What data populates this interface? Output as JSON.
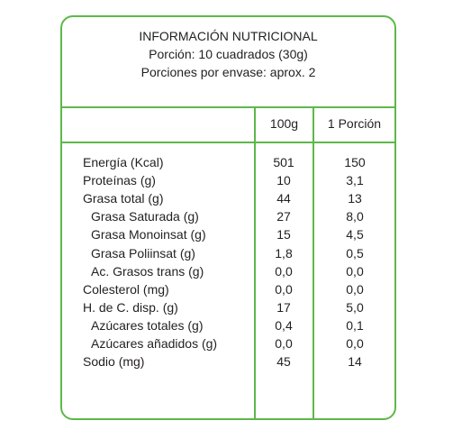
{
  "header": {
    "title": "INFORMACIÓN NUTRICIONAL",
    "serving": "Porción: 10 cuadrados (30g)",
    "servings_per_package": "Porciones por envase: aprox. 2"
  },
  "columns": {
    "per100g": "100g",
    "per_serving": "1 Porción"
  },
  "rows": [
    {
      "label": "Energía (Kcal)",
      "per100g": "501",
      "per_serving": "150",
      "indent": false
    },
    {
      "label": "Proteínas (g)",
      "per100g": "10",
      "per_serving": "3,1",
      "indent": false
    },
    {
      "label": "Grasa total (g)",
      "per100g": "44",
      "per_serving": "13",
      "indent": false
    },
    {
      "label": "Grasa Saturada (g)",
      "per100g": "27",
      "per_serving": "8,0",
      "indent": true
    },
    {
      "label": "Grasa Monoinsat (g)",
      "per100g": "15",
      "per_serving": "4,5",
      "indent": true
    },
    {
      "label": "Grasa Poliinsat (g)",
      "per100g": "1,8",
      "per_serving": "0,5",
      "indent": true
    },
    {
      "label": "Ac. Grasos trans (g)",
      "per100g": "0,0",
      "per_serving": "0,0",
      "indent": true
    },
    {
      "label": "Colesterol (mg)",
      "per100g": "0,0",
      "per_serving": "0,0",
      "indent": false
    },
    {
      "label": "H. de C. disp. (g)",
      "per100g": "17",
      "per_serving": "5,0",
      "indent": false
    },
    {
      "label": "Azúcares totales (g)",
      "per100g": "0,4",
      "per_serving": "0,1",
      "indent": true
    },
    {
      "label": "Azúcares añadidos (g)",
      "per100g": "0,0",
      "per_serving": "0,0",
      "indent": true
    },
    {
      "label": "Sodio (mg)",
      "per100g": "45",
      "per_serving": "14",
      "indent": false
    }
  ],
  "colors": {
    "border": "#5db84a",
    "text": "#231f20"
  }
}
